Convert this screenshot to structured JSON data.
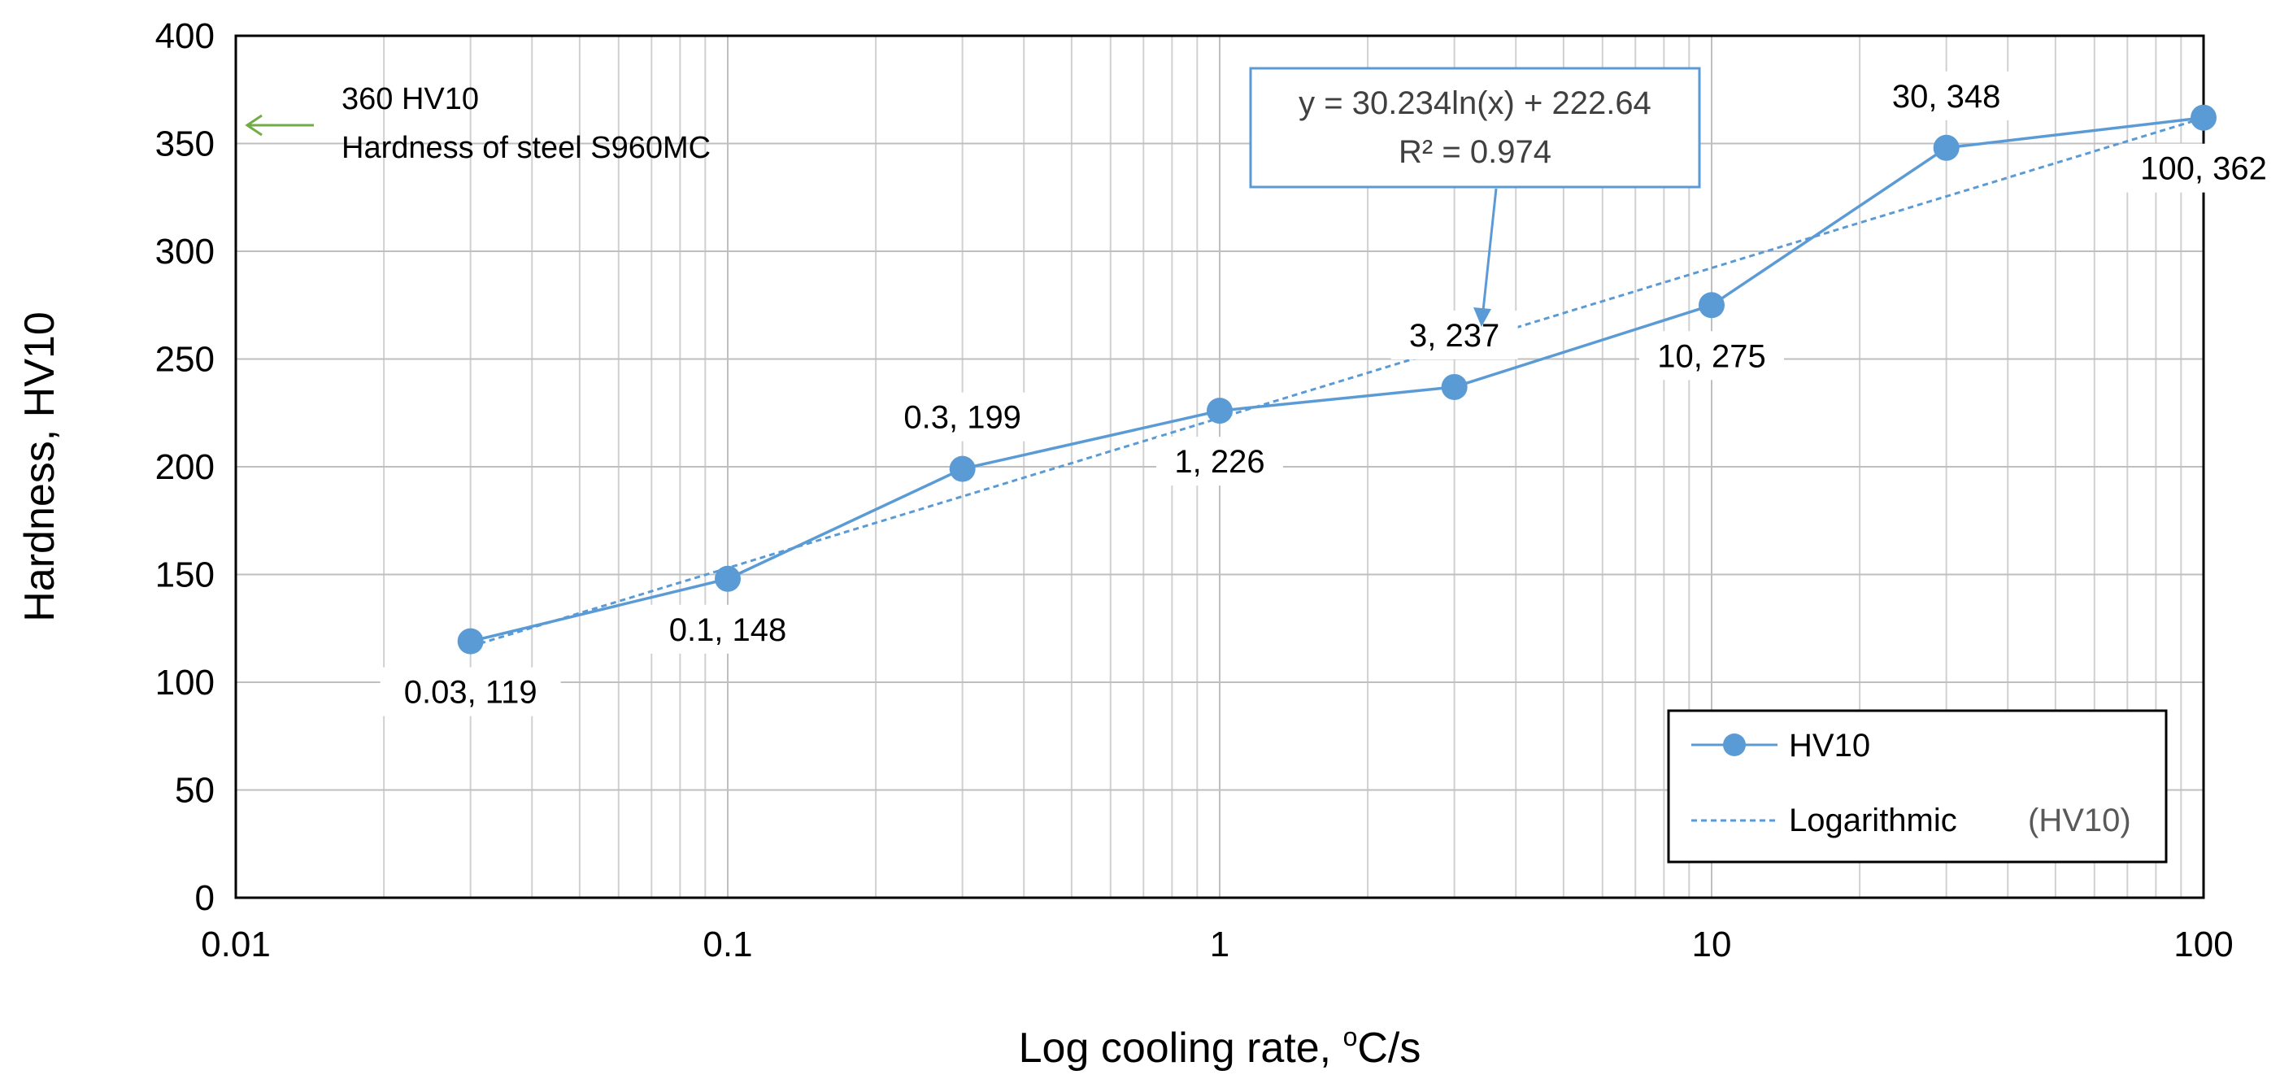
{
  "chart_data": {
    "type": "line",
    "xscale": "log",
    "xlabel_prefix": "Log cooling rate, ",
    "xlabel_sup": "o",
    "xlabel_suffix": "C/s",
    "ylabel": "Hardness, HV10",
    "xlim": [
      0.01,
      100
    ],
    "ylim": [
      0,
      400
    ],
    "x_ticks": [
      0.01,
      0.1,
      1,
      10,
      100
    ],
    "x_tick_labels": [
      "0.01",
      "0.1",
      "1",
      "10",
      "100"
    ],
    "y_ticks": [
      0,
      50,
      100,
      150,
      200,
      250,
      300,
      350,
      400
    ],
    "y_tick_labels": [
      "0",
      "50",
      "100",
      "150",
      "200",
      "250",
      "300",
      "350",
      "400"
    ],
    "grid": "major and minor",
    "series": [
      {
        "name": "HV10",
        "color": "#5B9BD5",
        "x": [
          0.03,
          0.1,
          0.3,
          1,
          3,
          10,
          30,
          100
        ],
        "y": [
          119,
          148,
          199,
          226,
          237,
          275,
          348,
          362
        ],
        "labels": [
          "0.03, 119",
          "0.1, 148",
          "0.3, 199",
          "1, 226",
          "3, 237",
          "10, 275",
          "30, 348",
          "100, 362"
        ],
        "label_pos": [
          "below",
          "below",
          "above",
          "below",
          "above",
          "below",
          "above",
          "below"
        ]
      }
    ],
    "trendline": {
      "name": "Logarithmic",
      "series_ref": "(HV10)",
      "a": 30.234,
      "b": 222.64,
      "x_range": [
        0.03,
        100
      ],
      "equation": "y = 30.234ln(x) + 222.64",
      "r2_label": "R² = 0.974",
      "color": "#5B9BD5"
    },
    "annotation": {
      "line1": "360 HV10",
      "line2": "Hardness of steel S960MC",
      "value": 360,
      "arrow_color": "#70AD47"
    },
    "legend": {
      "position": "bottom-right",
      "series_label": "HV10",
      "trend_label": "Logarithmic",
      "trend_ref": "(HV10)"
    }
  }
}
